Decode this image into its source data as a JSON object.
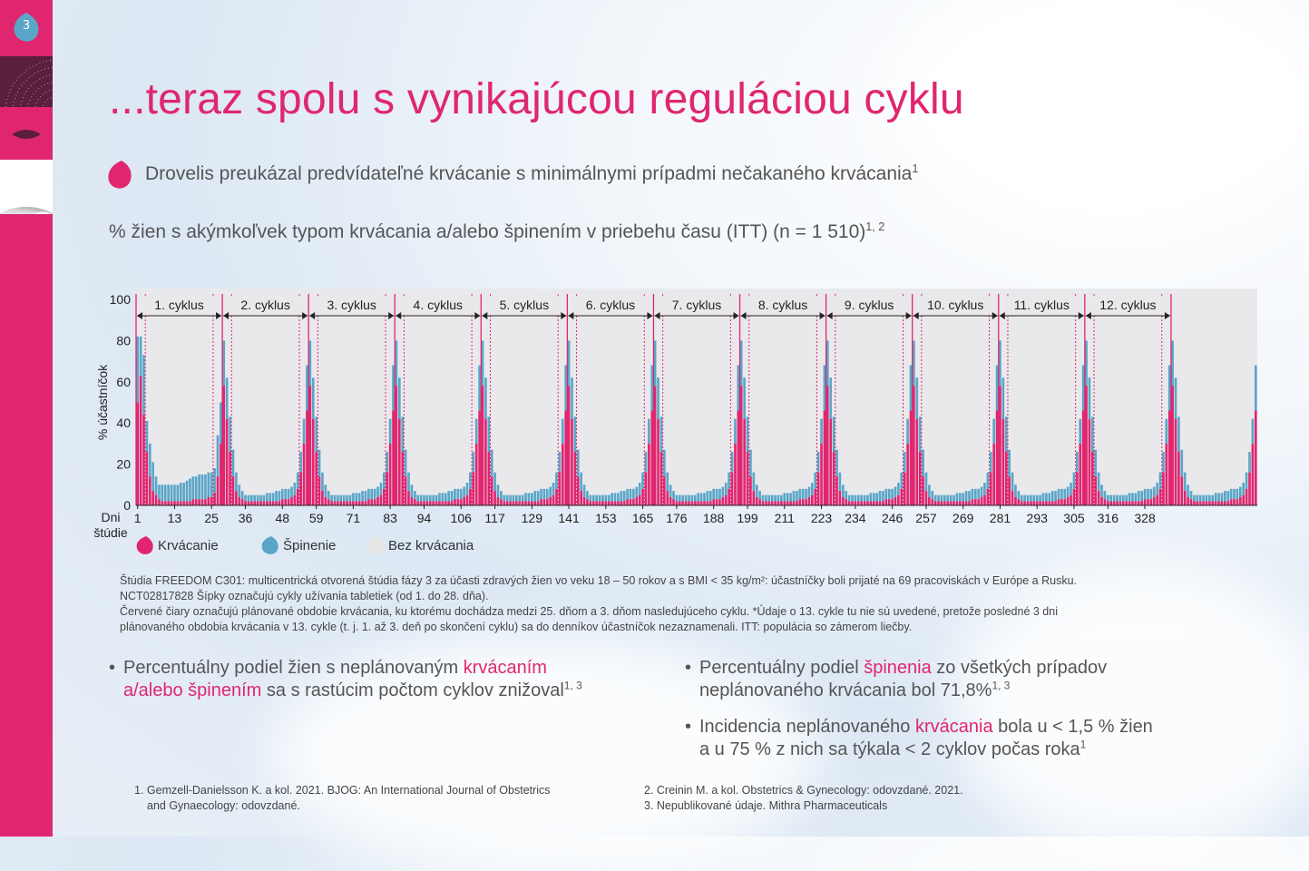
{
  "slide": {
    "number": "3",
    "title": "...teraz spolu s vynikajúcou reguláciou cyklu",
    "subtitle": "Drovelis preukázal predvídateľné krvácanie s minimálnymi prípadmi nečakaného krvácania",
    "subtitle_sup": "1",
    "chart_heading": "% žien s akýmkoľvek typom krvácania a/alebo špinením v priebehu času (ITT) (n = 1 510)",
    "chart_heading_sup": "1, 2"
  },
  "colors": {
    "accent": "#e0266f",
    "bleeding": "#e0266f",
    "spotting": "#5aa6c8",
    "no_bleeding": "#e6e6e6",
    "plot_bg": "#e9e9ec"
  },
  "legend": [
    {
      "label": "Krvácanie",
      "color": "#e0266f"
    },
    {
      "label": "Špinenie",
      "color": "#5aa6c8"
    },
    {
      "label": "Bez krvácania",
      "color": "#e6e6e6"
    }
  ],
  "chart_data": {
    "type": "bar",
    "stacked": true,
    "ylabel": "% účastníčok",
    "xlabel": "Dni štúdie",
    "xlabel_lines": [
      "Dni",
      "štúdie"
    ],
    "ylim": [
      0,
      100
    ],
    "yticks": [
      0,
      20,
      40,
      60,
      80,
      100
    ],
    "xlim": [
      1,
      364
    ],
    "xticks": [
      1,
      13,
      25,
      36,
      48,
      59,
      71,
      83,
      94,
      106,
      117,
      129,
      141,
      153,
      165,
      176,
      188,
      199,
      211,
      223,
      234,
      246,
      257,
      269,
      281,
      293,
      305,
      316,
      328
    ],
    "cycles": [
      "1. cyklus",
      "2. cyklus",
      "3. cyklus",
      "4. cyklus",
      "5. cyklus",
      "6. cyklus",
      "7. cyklus",
      "8. cyklus",
      "9. cyklus",
      "10. cyklus",
      "11. cyklus",
      "12. cyklus"
    ],
    "cycle_length_days": 28,
    "planned_bleeding_window": "25. deň – 3. deň nasledujúceho cyklu",
    "series": [
      {
        "name": "Krvácanie",
        "values_per_cycle_day": [
          58,
          42,
          26,
          14,
          7,
          4,
          3,
          2,
          2,
          2,
          2,
          2,
          2,
          2,
          2,
          2,
          2,
          2,
          2,
          3,
          3,
          3,
          4,
          5,
          8,
          16,
          30,
          46
        ]
      },
      {
        "name": "Špinenie",
        "values_per_cycle_day": [
          22,
          20,
          17,
          13,
          9,
          6,
          4,
          3,
          3,
          3,
          3,
          3,
          3,
          3,
          4,
          4,
          4,
          5,
          5,
          5,
          5,
          5,
          5,
          6,
          8,
          10,
          12,
          22
        ]
      }
    ],
    "cycle_1_values": {
      "Krvácanie": [
        50,
        63,
        44,
        26,
        14,
        7,
        5,
        3,
        2,
        2,
        2,
        2,
        2,
        2,
        2,
        2,
        2,
        2,
        3,
        3,
        3,
        3,
        3,
        4,
        4,
        6,
        14,
        30
      ],
      "Špinenie": [
        32,
        19,
        29,
        15,
        16,
        14,
        9,
        7,
        8,
        8,
        8,
        8,
        8,
        8,
        9,
        9,
        10,
        11,
        11,
        11,
        12,
        12,
        12,
        12,
        12,
        12,
        20,
        20
      ]
    }
  },
  "footnote_lines": [
    "Štúdia FREEDOM C301: multicentrická otvorená štúdia fázy 3 za účasti zdravých žien vo veku 18 – 50 rokov a s BMI < 35 kg/m²: účastníčky boli prijaté na 69 pracoviskách v Európe a Rusku.",
    "NCT02817828 Šípky označujú cykly užívania tabletiek (od 1. do 28. dňa).",
    "Červené čiary označujú plánované obdobie krvácania, ku ktorému dochádza medzi 25. dňom a 3. dňom nasledujúceho cyklu.  *Údaje o 13. cykle tu nie sú uvedené, pretože posledné 3 dni",
    "plánovaného obdobia krvácania v 13. cykle (t. j. 1. až 3. deň po skončení cyklu) sa do denníkov účastníčok nezaznamenali. ITT: populácia so zámerom liečby."
  ],
  "key_points": {
    "kp1_a": "Percentuálny podiel žien s neplánovaným ",
    "kp1_b": "krvácaním",
    "kp1_c": "a/alebo špinením",
    "kp1_d": " sa s rastúcim počtom cyklov znižoval",
    "kp1_sup": "1, 3",
    "kp2_a": "Percentuálny podiel ",
    "kp2_b": "špinenia",
    "kp2_c": " zo všetkých prípadov",
    "kp2_d": "neplánovaného krvácania bol 71,8%",
    "kp2_sup": "1, 3",
    "kp3_a": "Incidencia neplánovaného ",
    "kp3_b": "krvácania",
    "kp3_c": " bola u < 1,5 % žien",
    "kp3_d": "a u 75 % z nich sa týkala < 2 cyklov počas roka",
    "kp3_sup": "1"
  },
  "references": {
    "r1_line1": "1. Gemzell-Danielsson K. a kol. 2021. BJOG: An International Journal of Obstetrics",
    "r1_line2": "and Gynaecology: odovzdané.",
    "r2": "2. Creinin M. a kol. Obstetrics & Gynecology: odovzdané. 2021.",
    "r3": "3. Nepublikované údaje. Mithra Pharmaceuticals"
  }
}
